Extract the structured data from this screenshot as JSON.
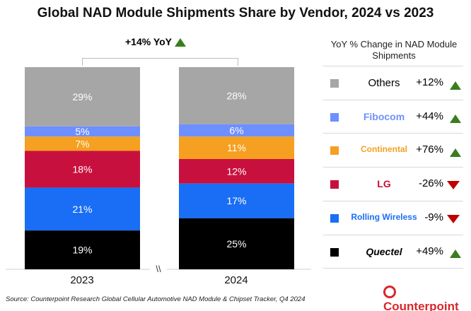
{
  "title": "Global NAD Module Shipments Share by Vendor, 2024 vs 2023",
  "yoy_label": "+14% YoY",
  "yoy_direction": "up",
  "legend_title": "YoY % Change in NAD Module Shipments",
  "source": "Source: Counterpoint Research Global Cellular Automotive NAD Module & Chipset Tracker, Q4 2024",
  "logo_text": "Counterpoint",
  "axis_break": "\\\\",
  "chart_data": {
    "type": "stacked-bar",
    "categories": [
      "2023",
      "2024"
    ],
    "series": [
      {
        "name": "Others",
        "color": "#a6a6a6",
        "values": [
          29,
          28
        ],
        "yoy": "+12%",
        "direction": "up"
      },
      {
        "name": "Fibocom",
        "color": "#6e8fff",
        "values": [
          5,
          6
        ],
        "yoy": "+44%",
        "direction": "up"
      },
      {
        "name": "Continental",
        "color": "#f5a020",
        "values": [
          7,
          11
        ],
        "yoy": "+76%",
        "direction": "up"
      },
      {
        "name": "LG",
        "color": "#c8103e",
        "values": [
          18,
          12
        ],
        "yoy": "-26%",
        "direction": "down"
      },
      {
        "name": "Rolling Wireless",
        "color": "#1a6ef5",
        "values": [
          21,
          17
        ],
        "yoy": "-9%",
        "direction": "down"
      },
      {
        "name": "Quectel",
        "color": "#000000",
        "values": [
          19,
          25
        ],
        "yoy": "+49%",
        "direction": "up"
      }
    ],
    "value_suffix": "%"
  }
}
